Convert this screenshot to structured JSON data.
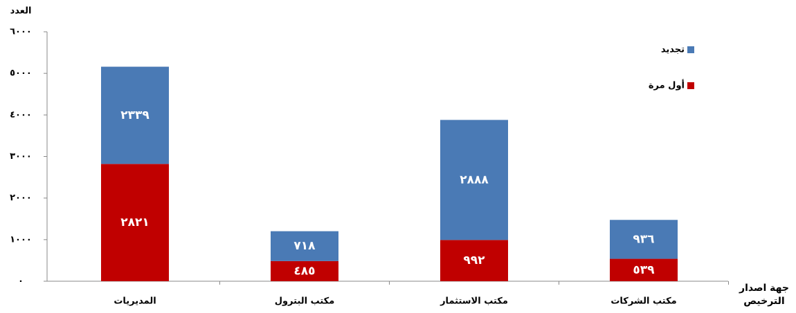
{
  "chart_data": {
    "type": "stacked_bar",
    "y_axis_label": "العدد",
    "x_axis_label": "جهة اصدار الترخيص",
    "categories": [
      "المديريات",
      "مكتب البترول",
      "مكتب الاستثمار",
      "مكتب الشركات"
    ],
    "series": [
      {
        "name": "أول مرة",
        "color": "#c00000",
        "values": [
          2821,
          485,
          992,
          539
        ],
        "value_labels": [
          "٢٨٢١",
          "٤٨٥",
          "٩٩٢",
          "٥٣٩"
        ]
      },
      {
        "name": "تجديد",
        "color": "#4a7ab5",
        "values": [
          2339,
          718,
          2888,
          936
        ],
        "value_labels": [
          "٢٣٣٩",
          "٧١٨",
          "٢٨٨٨",
          "٩٣٦"
        ]
      }
    ],
    "ylim": [
      0,
      6000
    ],
    "yticks": [
      {
        "value": 0,
        "label": "٠"
      },
      {
        "value": 1000,
        "label": "١٠٠٠"
      },
      {
        "value": 2000,
        "label": "٢٠٠٠"
      },
      {
        "value": 3000,
        "label": "٣٠٠٠"
      },
      {
        "value": 4000,
        "label": "٤٠٠٠"
      },
      {
        "value": 5000,
        "label": "٥٠٠٠"
      },
      {
        "value": 6000,
        "label": "٦٠٠٠"
      }
    ],
    "legend": "top-right"
  }
}
